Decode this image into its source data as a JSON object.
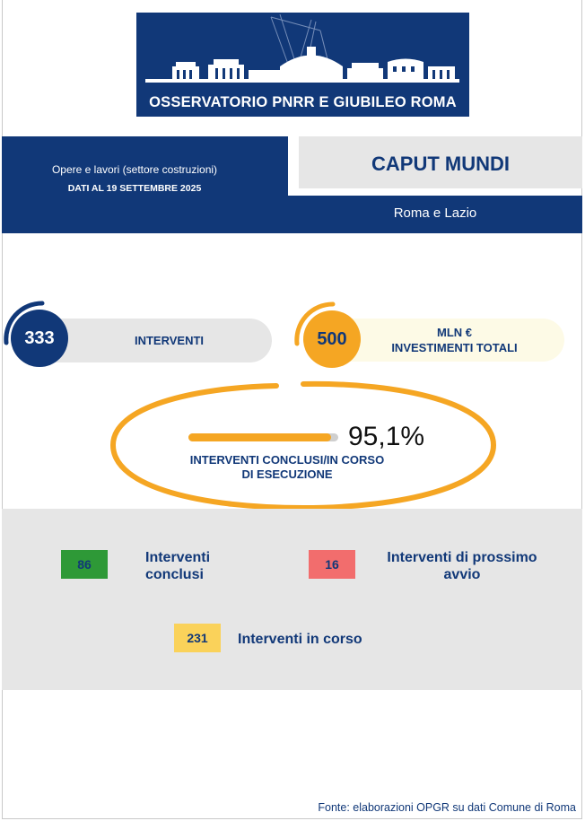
{
  "banner": {
    "title": "OSSERVATORIO PNRR E GIUBILEO ROMA"
  },
  "header": {
    "subtitle": "Opere e lavori  (settore costruzioni)",
    "date": "DATI AL 19 SETTEMBRE  2025",
    "title": "CAPUT MUNDI",
    "region": "Roma e Lazio"
  },
  "kpis": {
    "interventi": {
      "value": "333",
      "label": "INTERVENTI"
    },
    "investimenti": {
      "value": "500",
      "label_line1": "MLN €",
      "label_line2": "INVESTIMENTI TOTALI"
    }
  },
  "progress": {
    "value": "95,1%",
    "fraction": 0.951,
    "label": "INTERVENTI CONCLUSI/IN CORSO DI ESECUZIONE"
  },
  "stats": [
    {
      "value": "86",
      "label": "Interventi conclusi",
      "color": "#2e9937"
    },
    {
      "value": "16",
      "label": "Interventi di prossimo avvio",
      "color": "#f26d6d"
    },
    {
      "value": "231",
      "label": "Interventi in corso",
      "color": "#fad25a"
    }
  ],
  "colors": {
    "navy": "#113878",
    "orange": "#f5a623",
    "grey": "#e6e6e6"
  },
  "source": "Fonte: elaborazioni OPGR su dati Comune di Roma"
}
